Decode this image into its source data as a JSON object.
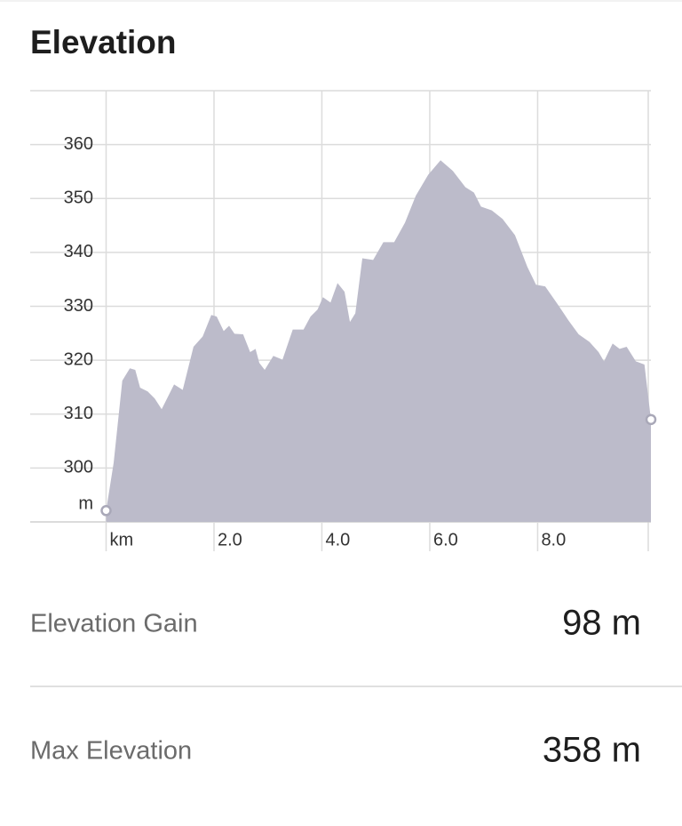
{
  "header": {
    "title": "Elevation"
  },
  "chart_data": {
    "type": "area",
    "color": "#bcbbca",
    "x": [
      0,
      0.14,
      0.3,
      0.44,
      0.54,
      0.63,
      0.77,
      0.9,
      1.03,
      1.26,
      1.42,
      1.62,
      1.79,
      1.95,
      2.05,
      2.18,
      2.28,
      2.38,
      2.54,
      2.67,
      2.77,
      2.84,
      2.94,
      3.1,
      3.27,
      3.46,
      3.66,
      3.79,
      3.92,
      4.02,
      4.16,
      4.29,
      4.42,
      4.52,
      4.62,
      4.75,
      4.95,
      5.14,
      5.34,
      5.54,
      5.74,
      5.97,
      6.2,
      6.43,
      6.66,
      6.82,
      6.95,
      7.15,
      7.35,
      7.58,
      7.81,
      7.97,
      8.14,
      8.37,
      8.57,
      8.76,
      8.96,
      9.13,
      9.23,
      9.39,
      9.52,
      9.65,
      9.82,
      9.98,
      10.1
    ],
    "values": [
      292.1,
      301,
      316.2,
      318.5,
      318.2,
      314.9,
      314.2,
      312.9,
      310.9,
      315.5,
      314.5,
      322.5,
      324.4,
      328.4,
      328.1,
      325.4,
      326.4,
      324.9,
      324.8,
      321.5,
      322.1,
      319.5,
      318.2,
      320.8,
      320.1,
      325.7,
      325.7,
      328.1,
      329.4,
      331.7,
      330.7,
      334.3,
      332.7,
      327.1,
      328.7,
      338.9,
      338.6,
      341.9,
      341.9,
      345.5,
      350.5,
      354.4,
      357.1,
      355.1,
      352.1,
      351.1,
      348.5,
      347.8,
      346.2,
      343.2,
      337.3,
      334,
      333.7,
      330.4,
      327.4,
      324.8,
      323.4,
      321.5,
      319.8,
      323.1,
      322.1,
      322.5,
      319.8,
      319.2,
      309
    ],
    "xlim": [
      0,
      10.1
    ],
    "ylim": [
      290,
      370
    ],
    "xticks": [
      {
        "value": 0,
        "label": "km"
      },
      {
        "value": 2,
        "label": "2.0"
      },
      {
        "value": 4,
        "label": "4.0"
      },
      {
        "value": 6,
        "label": "6.0"
      },
      {
        "value": 8,
        "label": "8.0"
      }
    ],
    "yticks": [
      300,
      310,
      320,
      330,
      340,
      350,
      360
    ],
    "y_unit": "m",
    "grid": true
  },
  "stats": [
    {
      "label": "Elevation Gain",
      "value": "98 m"
    },
    {
      "label": "Max Elevation",
      "value": "358 m"
    }
  ]
}
